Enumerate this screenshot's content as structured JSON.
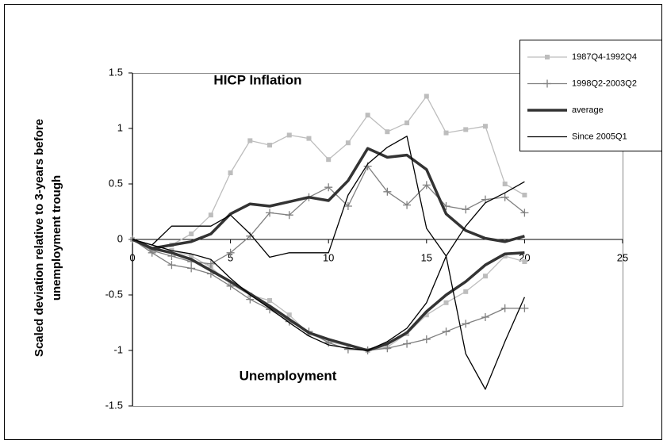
{
  "chart_data": {
    "type": "line",
    "y_label": [
      "Scaled deviation relative to 3-years before",
      "unemployment trough"
    ],
    "annotations": [
      "HICP Inflation",
      "Unemployment"
    ],
    "x": [
      0,
      1,
      2,
      3,
      4,
      5,
      6,
      7,
      8,
      9,
      10,
      11,
      12,
      13,
      14,
      15,
      16,
      17,
      18,
      19,
      20
    ],
    "xlim": [
      0,
      25
    ],
    "xticks": [
      0,
      5,
      10,
      15,
      20,
      25
    ],
    "ylim": [
      -1.5,
      1.5
    ],
    "yticks": [
      1.5,
      1,
      0.5,
      0,
      -0.5,
      -1,
      -1.5
    ],
    "grid": false,
    "legend": "upper right",
    "series": [
      {
        "name": "1987Q4-1992Q4",
        "color": "#bdbdbd",
        "marker": "square",
        "width": 1.3,
        "inflation": [
          0,
          -0.1,
          -0.05,
          0.05,
          0.22,
          0.6,
          0.89,
          0.85,
          0.94,
          0.91,
          0.72,
          0.87,
          1.12,
          0.97,
          1.05,
          1.29,
          0.96,
          0.99,
          1.02,
          0.5,
          0.4
        ],
        "unemployment": [
          0,
          -0.1,
          -0.1,
          -0.15,
          -0.25,
          -0.4,
          -0.5,
          -0.55,
          -0.68,
          -0.85,
          -0.92,
          -0.96,
          -1.0,
          -0.97,
          -0.85,
          -0.68,
          -0.57,
          -0.47,
          -0.33,
          -0.15,
          -0.2
        ]
      },
      {
        "name": "1998Q2-2003Q2",
        "color": "#808080",
        "marker": "plus",
        "width": 1.3,
        "inflation": [
          0,
          -0.1,
          -0.15,
          -0.2,
          -0.22,
          -0.12,
          0.03,
          0.24,
          0.22,
          0.38,
          0.47,
          0.3,
          0.66,
          0.43,
          0.31,
          0.49,
          0.3,
          0.27,
          0.36,
          0.38,
          0.24
        ],
        "unemployment": [
          0,
          -0.12,
          -0.23,
          -0.26,
          -0.31,
          -0.42,
          -0.54,
          -0.63,
          -0.74,
          -0.83,
          -0.93,
          -0.99,
          -1.0,
          -0.98,
          -0.94,
          -0.9,
          -0.83,
          -0.76,
          -0.7,
          -0.62,
          -0.62
        ]
      },
      {
        "name": "average",
        "color": "#333333",
        "marker": "none",
        "width": 3.5,
        "inflation": [
          0,
          -0.08,
          -0.05,
          -0.02,
          0.05,
          0.23,
          0.32,
          0.3,
          0.34,
          0.38,
          0.35,
          0.53,
          0.82,
          0.74,
          0.76,
          0.63,
          0.23,
          0.08,
          0.01,
          -0.02,
          0.03
        ],
        "unemployment": [
          0,
          -0.08,
          -0.12,
          -0.18,
          -0.28,
          -0.38,
          -0.49,
          -0.6,
          -0.72,
          -0.84,
          -0.9,
          -0.95,
          -1.0,
          -0.94,
          -0.84,
          -0.65,
          -0.5,
          -0.38,
          -0.23,
          -0.13,
          -0.12
        ]
      },
      {
        "name": "Since 2005Q1",
        "color": "#000000",
        "marker": "none",
        "width": 1.3,
        "inflation": [
          0,
          -0.05,
          0.12,
          0.12,
          0.12,
          0.22,
          0.05,
          -0.16,
          -0.12,
          -0.12,
          -0.12,
          0.4,
          0.68,
          0.83,
          0.93,
          0.1,
          -0.15,
          0.12,
          0.33,
          0.42,
          0.52
        ],
        "unemployment": [
          0,
          -0.05,
          -0.1,
          -0.13,
          -0.18,
          -0.35,
          -0.5,
          -0.62,
          -0.75,
          -0.87,
          -0.95,
          -0.98,
          -1.0,
          -0.92,
          -0.8,
          -0.57,
          -0.15,
          -1.03,
          -1.35,
          -0.92,
          -0.52
        ]
      }
    ]
  }
}
